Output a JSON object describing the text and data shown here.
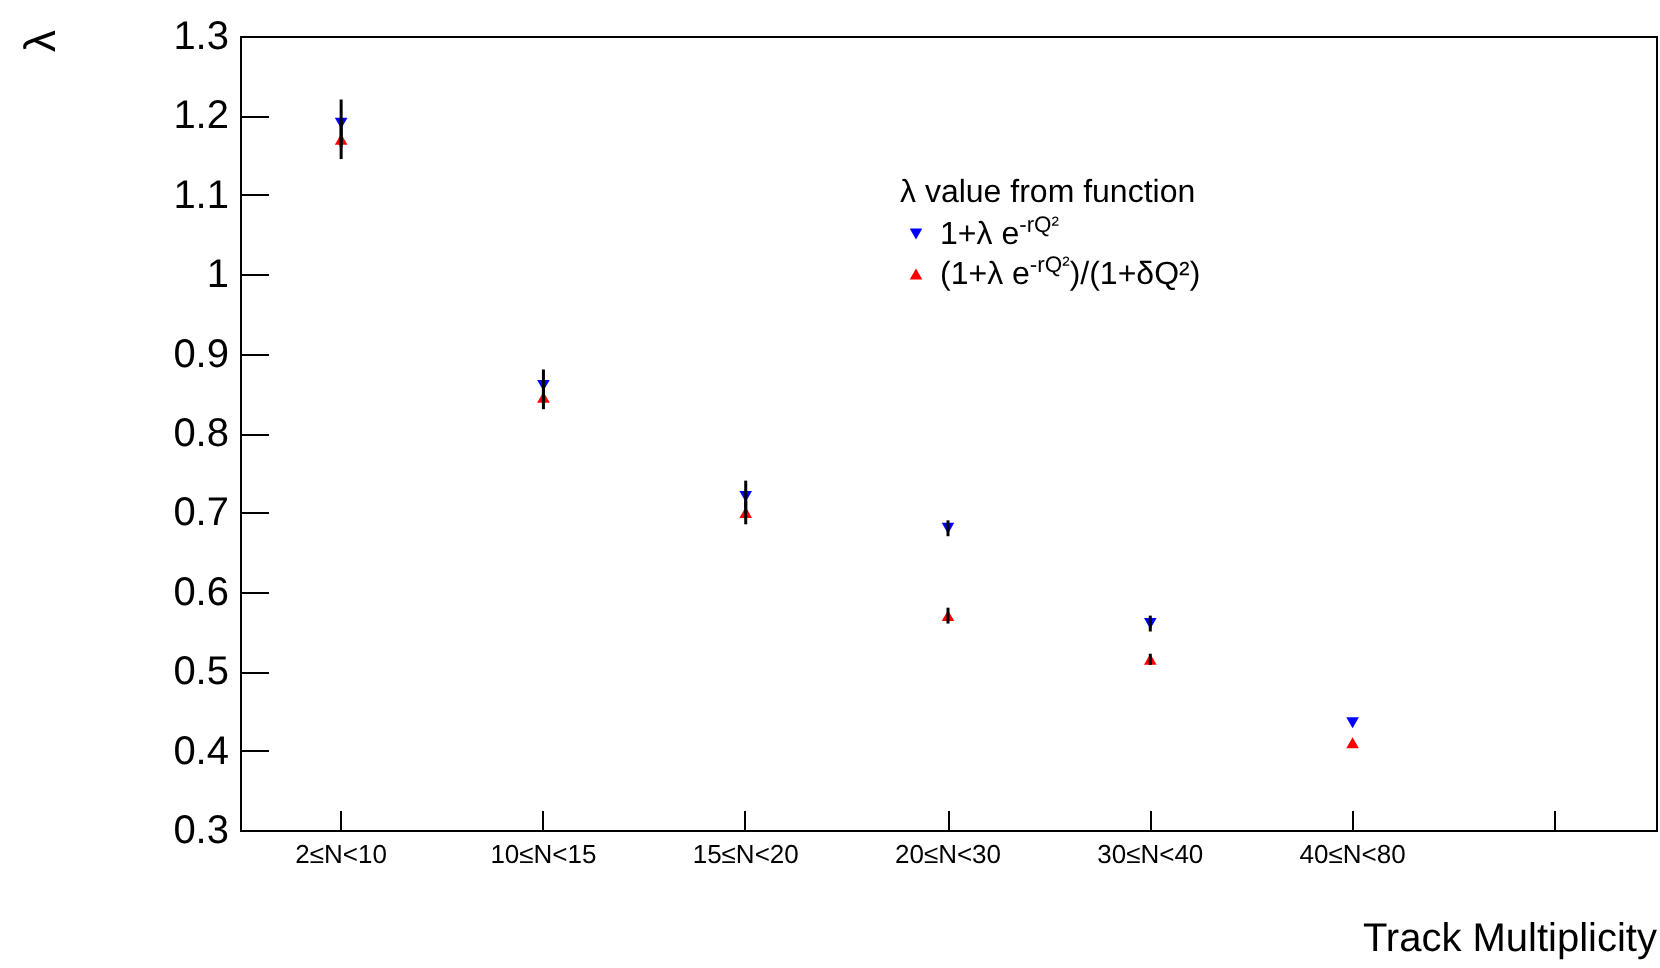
{
  "chart_data": {
    "type": "scatter",
    "xlabel": "Track Multiplicity",
    "ylabel": "λ",
    "legend_title": "λ value from function",
    "legend": "top right",
    "grid": false,
    "categories": [
      "2≤N<10",
      "10≤N<15",
      "15≤N<20",
      "20≤N<30",
      "30≤N<40",
      "40≤N<80",
      null
    ],
    "ylim": [
      0.3,
      1.3
    ],
    "yticks": [
      0.3,
      0.4,
      0.5,
      0.6,
      0.7,
      0.8,
      0.9,
      1,
      1.1,
      1.2,
      1.3
    ],
    "series": [
      {
        "name": "1+λ e$^{-rQ²}$",
        "color": "#0000ff",
        "marker": "triangle-down",
        "values": [
          1.19,
          0.86,
          0.72,
          0.68,
          0.56,
          0.435,
          null
        ],
        "errors": [
          0.03,
          0.02,
          0.02,
          0.01,
          0.01,
          null,
          null
        ]
      },
      {
        "name": "(1+λ e$^{-rQ²}$)/(1+δQ²)",
        "color": "#ff0000",
        "marker": "triangle-up",
        "values": [
          1.17,
          0.845,
          0.7,
          0.57,
          0.515,
          0.41,
          null
        ],
        "errors": [
          0.025,
          0.015,
          0.015,
          0.01,
          0.007,
          null,
          null
        ]
      }
    ]
  }
}
